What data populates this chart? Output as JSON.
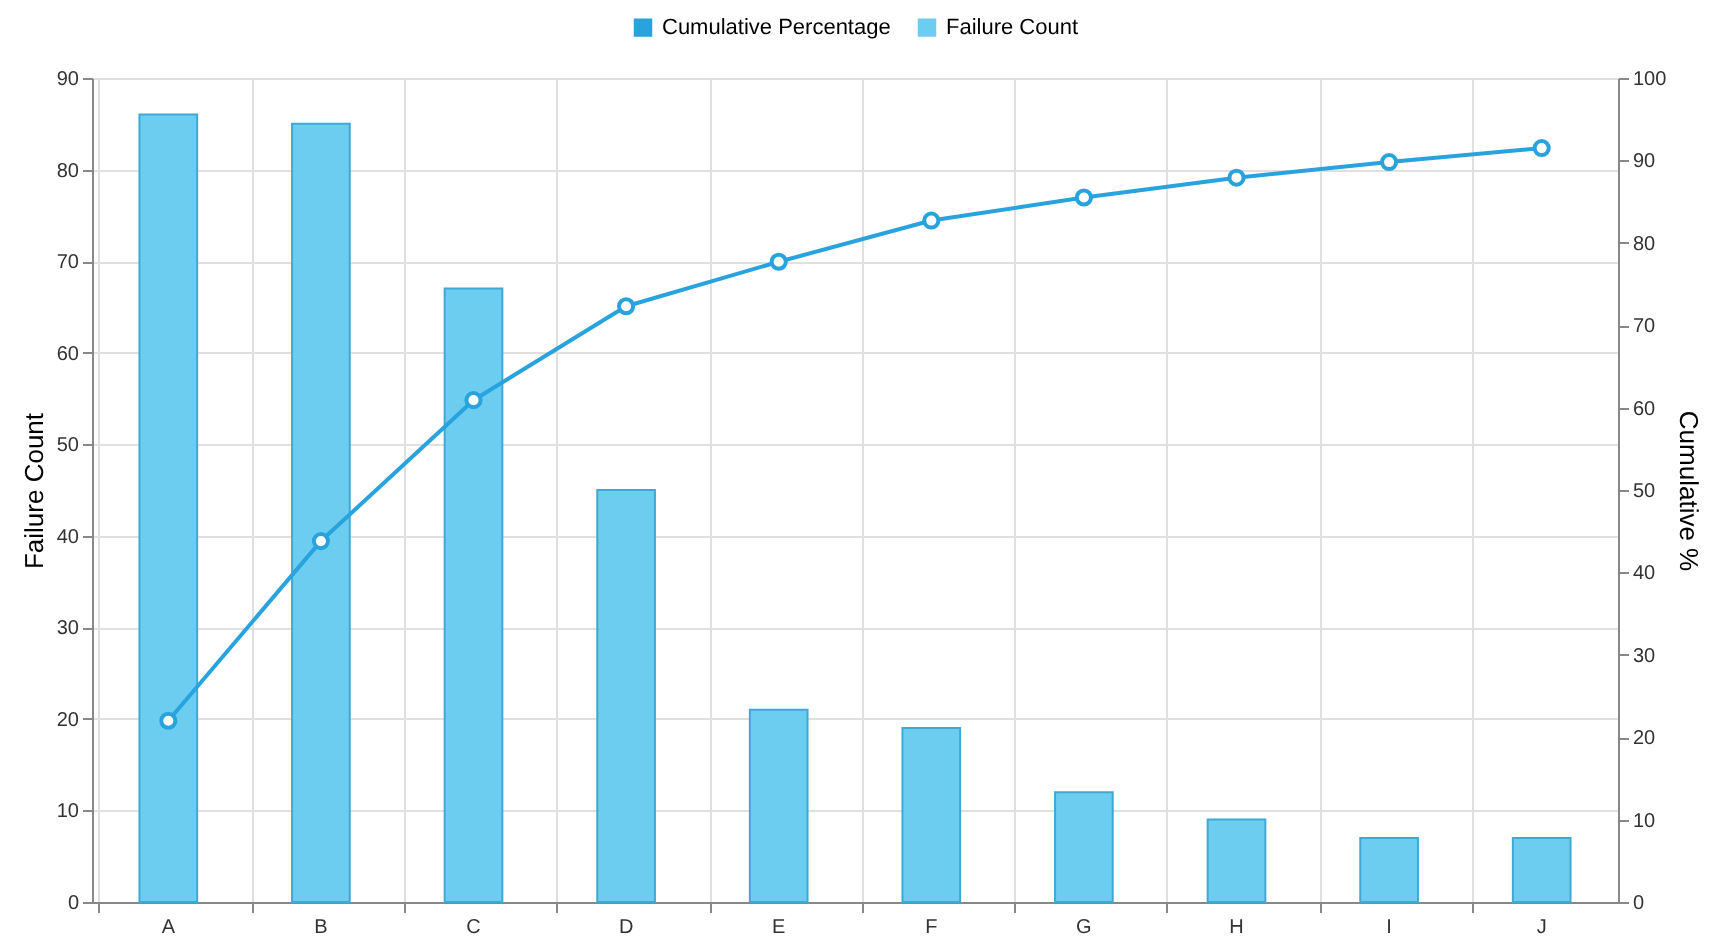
{
  "chart_data": {
    "type": "bar",
    "ylabel": "Failure Count",
    "y2label": "Cumulative %",
    "categories": [
      "A",
      "B",
      "C",
      "D",
      "E",
      "F",
      "G",
      "H",
      "I",
      "J"
    ],
    "series": [
      {
        "name": "Cumulative Percentage",
        "type": "line",
        "axis": "y2",
        "color": "#29a3dd",
        "values": [
          22.0,
          43.8,
          60.9,
          72.3,
          77.7,
          82.7,
          85.5,
          87.9,
          89.8,
          91.5
        ]
      },
      {
        "name": "Failure Count",
        "color": "#6ccdf0",
        "values": [
          86,
          85,
          67,
          45,
          21,
          19,
          12,
          9,
          7,
          7
        ]
      }
    ],
    "ylim": [
      0,
      90
    ],
    "yticks": [
      0,
      10,
      20,
      30,
      40,
      50,
      60,
      70,
      80,
      90
    ],
    "y2lim": [
      0,
      100
    ],
    "y2ticks": [
      0,
      10,
      20,
      30,
      40,
      50,
      60,
      70,
      80,
      90,
      100
    ],
    "legend": "top",
    "grid": true,
    "marker": "circle",
    "line_style": "solid"
  }
}
